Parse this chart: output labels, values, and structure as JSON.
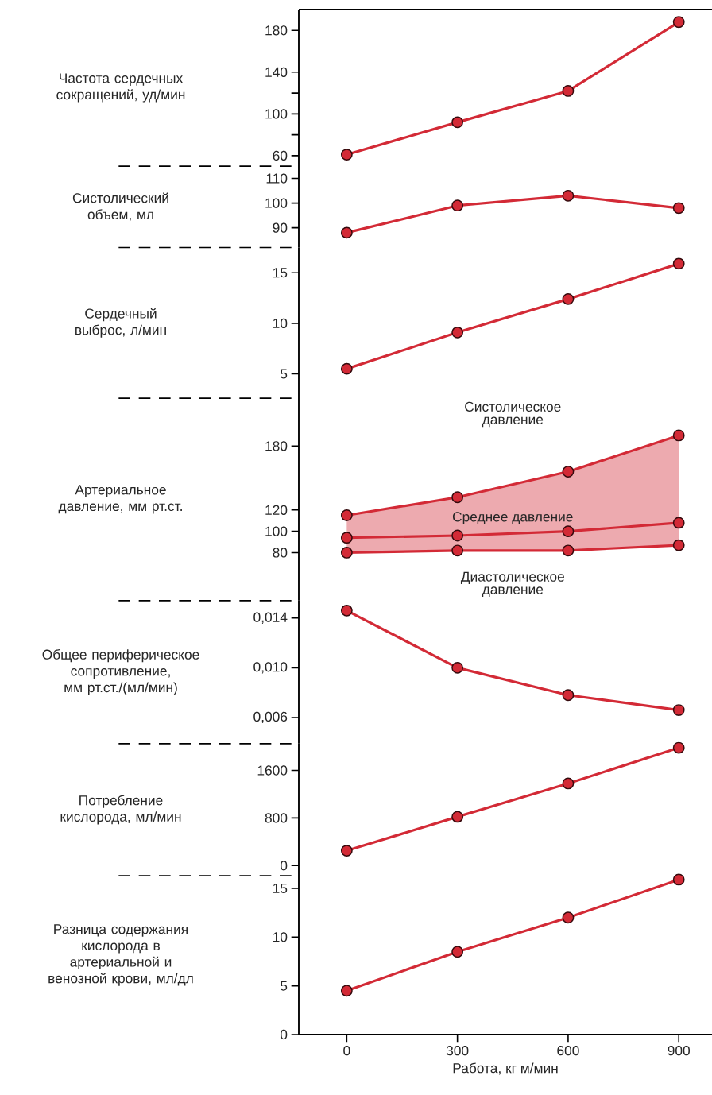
{
  "chart_data": [
    {
      "type": "line",
      "ylabel": "Частота сердечных сокращений, уд/мин",
      "x": [
        0,
        300,
        600,
        900
      ],
      "xlim": [
        -130,
        990
      ],
      "ylim": [
        50,
        200
      ],
      "yticks": [
        60,
        {
          "value": 80,
          "label": null
        },
        100,
        {
          "value": 120,
          "label": null
        },
        140,
        180
      ],
      "marker": "circle",
      "tick_labels": "y",
      "series": [
        {
          "color": "#d32a36",
          "values": [
            61,
            92,
            122,
            188
          ]
        }
      ]
    },
    {
      "type": "line",
      "ylabel": "Систолический объем, мл",
      "x": [
        0,
        300,
        600,
        900
      ],
      "ylim": [
        82,
        115
      ],
      "yticks": [
        90,
        100,
        110
      ],
      "marker": "circle",
      "tick_labels": "y",
      "series": [
        {
          "color": "#d32a36",
          "values": [
            88,
            99,
            103,
            98
          ]
        }
      ]
    },
    {
      "type": "line",
      "ylabel": "Сердечный выброс, л/мин",
      "x": [
        0,
        300,
        600,
        900
      ],
      "ylim": [
        2.6,
        17.5
      ],
      "yticks": [
        5,
        10,
        15
      ],
      "marker": "circle",
      "tick_labels": "y",
      "series": [
        {
          "color": "#d32a36",
          "values": [
            5.5,
            9.1,
            12.4,
            15.9
          ]
        }
      ]
    },
    {
      "type": "line",
      "ylabel": "Артериальное давление, мм рт.ст.",
      "x": [
        0,
        300,
        600,
        900
      ],
      "ylim": [
        35,
        225
      ],
      "yticks": [
        80,
        100,
        120,
        180
      ],
      "marker": "circle",
      "tick_labels": "y",
      "series": [
        {
          "name": "Систолическое давление",
          "color": "#d32a36",
          "values": [
            115,
            132,
            156,
            190
          ]
        },
        {
          "name": "Среднее давление",
          "color": "#d32a36",
          "values": [
            94,
            96,
            100,
            108
          ],
          "lower": [
            80,
            82,
            82,
            87
          ],
          "upper": [
            115,
            132,
            156,
            190
          ]
        },
        {
          "name": "Диастолическое давление",
          "color": "#d32a36",
          "values": [
            80,
            82,
            82,
            87
          ]
        }
      ]
    },
    {
      "type": "line",
      "ylabel": "Общее периферическое сопротивление, мм рт.ст./(мл/мин)",
      "x": [
        0,
        300,
        600,
        900
      ],
      "ylim": [
        0.0039,
        0.0154
      ],
      "yticks": [
        {
          "value": 0.006,
          "label": "0,006"
        },
        {
          "value": 0.01,
          "label": "0,010"
        },
        {
          "value": 0.014,
          "label": "0,014"
        }
      ],
      "marker": "circle",
      "tick_labels": "y",
      "series": [
        {
          "color": "#d32a36",
          "values": [
            0.0146,
            0.01,
            0.0078,
            0.0066
          ]
        }
      ]
    },
    {
      "type": "line",
      "ylabel": "Потребление кислорода, мл/мин",
      "x": [
        0,
        300,
        600,
        900
      ],
      "ylim": [
        -170,
        2050
      ],
      "yticks": [
        0,
        800,
        1600
      ],
      "marker": "circle",
      "tick_labels": "y",
      "series": [
        {
          "color": "#d32a36",
          "values": [
            250,
            820,
            1380,
            1980
          ]
        }
      ]
    },
    {
      "type": "line",
      "ylabel": "Разница содержания кислорода в артериальной и венозной крови, мл/дл",
      "xlabel": "Работа, кг м/мин",
      "x": [
        0,
        300,
        600,
        900
      ],
      "xlim": [
        -130,
        990
      ],
      "xticks": [
        0,
        300,
        600,
        900
      ],
      "ylim": [
        0,
        16.3
      ],
      "yticks": [
        0,
        5,
        10,
        15
      ],
      "marker": "circle",
      "series": [
        {
          "color": "#d32a36",
          "values": [
            4.5,
            8.5,
            12,
            15.9
          ]
        }
      ]
    }
  ]
}
